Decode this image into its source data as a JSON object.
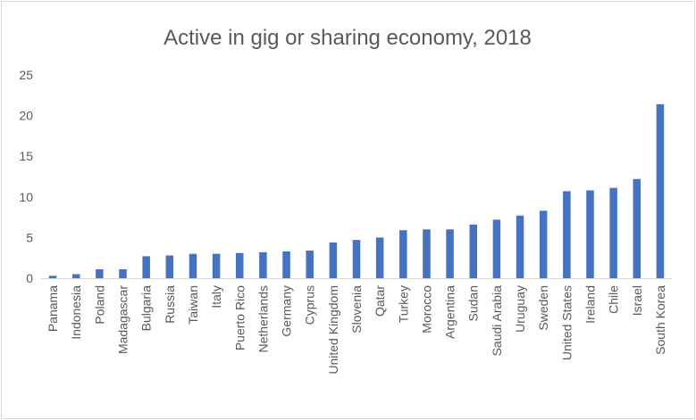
{
  "chart_data": {
    "type": "bar",
    "title": "Active in gig or sharing economy, 2018",
    "xlabel": "",
    "ylabel": "",
    "ylim": [
      0,
      25
    ],
    "yticks": [
      0,
      5,
      10,
      15,
      20,
      25
    ],
    "grid": false,
    "legend": "none",
    "bar_color": "#4472c4",
    "categories": [
      "Panama",
      "Indonesia",
      "Poland",
      "Madagascar",
      "Bulgaria",
      "Russia",
      "Taiwan",
      "Italy",
      "Puerto Rico",
      "Netherlands",
      "Germany",
      "Cyprus",
      "United Kingdom",
      "Slovenia",
      "Qatar",
      "Turkey",
      "Morocco",
      "Argentina",
      "Sudan",
      "Saudi Arabia",
      "Uruguay",
      "Sweden",
      "United States",
      "Ireland",
      "Chile",
      "Israel",
      "South Korea"
    ],
    "values": [
      0.3,
      0.5,
      1.1,
      1.1,
      2.7,
      2.8,
      3.0,
      3.0,
      3.1,
      3.2,
      3.3,
      3.4,
      4.4,
      4.7,
      5.0,
      5.9,
      6.0,
      6.0,
      6.6,
      7.2,
      7.7,
      8.3,
      10.7,
      10.8,
      11.1,
      12.2,
      21.4
    ]
  }
}
